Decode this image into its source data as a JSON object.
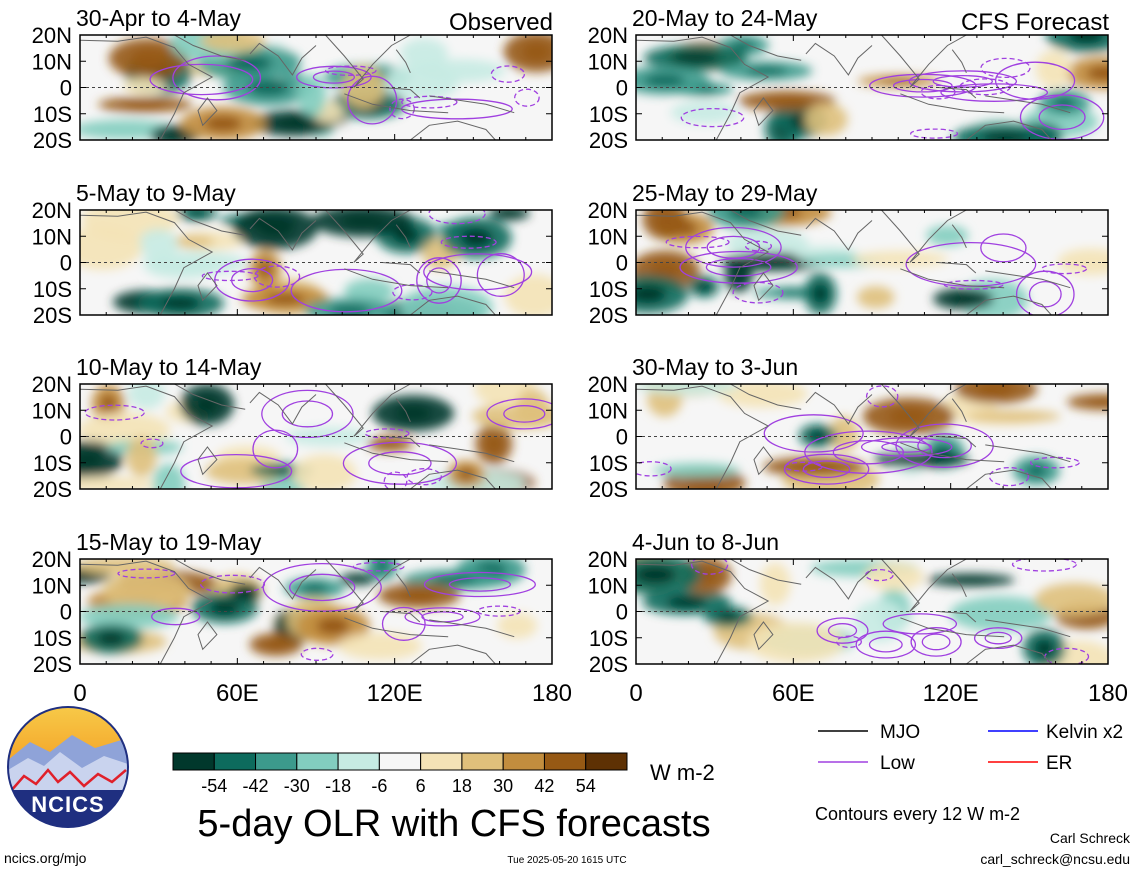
{
  "header": {
    "observed_label": "Observed",
    "forecast_label": "CFS Forecast"
  },
  "axes": {
    "lat_labels": [
      "20N",
      "10N",
      "0",
      "10S",
      "20S"
    ],
    "lon_labels": [
      "0",
      "60E",
      "120E",
      "180"
    ]
  },
  "panels": [
    {
      "id": "p1",
      "col": 0,
      "row": 0,
      "title": "30-Apr to 4-May",
      "kind": "observed"
    },
    {
      "id": "p2",
      "col": 0,
      "row": 1,
      "title": "5-May to 9-May",
      "kind": "observed"
    },
    {
      "id": "p3",
      "col": 0,
      "row": 2,
      "title": "10-May to 14-May",
      "kind": "observed"
    },
    {
      "id": "p4",
      "col": 0,
      "row": 3,
      "title": "15-May to 19-May",
      "kind": "observed"
    },
    {
      "id": "p5",
      "col": 1,
      "row": 0,
      "title": "20-May to 24-May",
      "kind": "forecast"
    },
    {
      "id": "p6",
      "col": 1,
      "row": 1,
      "title": "25-May to 29-May",
      "kind": "forecast"
    },
    {
      "id": "p7",
      "col": 1,
      "row": 2,
      "title": "30-May to 3-Jun",
      "kind": "forecast"
    },
    {
      "id": "p8",
      "col": 1,
      "row": 3,
      "title": "4-Jun to 8-Jun",
      "kind": "forecast"
    }
  ],
  "colorbar": {
    "colors": [
      "#01382c",
      "#0d6b5d",
      "#3c9a8c",
      "#82cdbf",
      "#c6ebe3",
      "#f6f6f6",
      "#f4e3b6",
      "#dfc07b",
      "#c28d3e",
      "#965914",
      "#5e3104"
    ],
    "tick_labels": [
      "-54",
      "-42",
      "-30",
      "-18",
      "-6",
      "6",
      "18",
      "30",
      "42",
      "54"
    ],
    "unit_label": "W m-2"
  },
  "legend": {
    "items": [
      {
        "label": "MJO",
        "color": "#000000"
      },
      {
        "label": "Kelvin x2",
        "color": "#0000ff"
      },
      {
        "label": "Low",
        "color": "#a040e0"
      },
      {
        "label": "ER",
        "color": "#ff0000"
      }
    ],
    "contour_note": "Contours every 12 W m-2"
  },
  "footer": {
    "logo_text": "NCICS",
    "main_title": "5-day OLR with CFS forecasts",
    "url": "ncics.org/mjo",
    "timestamp": "Tue 2025-05-20 1615 UTC",
    "author": "Carl Schreck",
    "email": "carl_schreck@ncsu.edu"
  }
}
